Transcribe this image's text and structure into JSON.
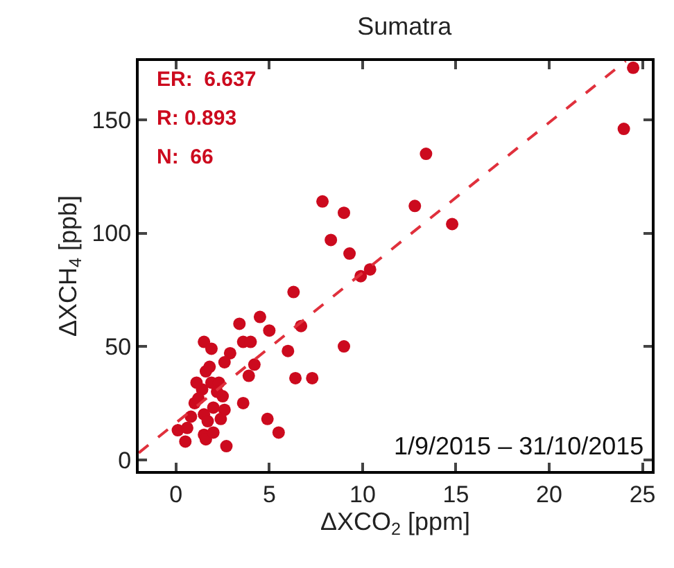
{
  "chart_data": {
    "type": "scatter",
    "title": "Sumatra",
    "xlabel": "ΔXCO$_{2}$ [ppm]",
    "ylabel": "ΔXCH$_{4}$ [ppb]",
    "xlim": [
      -2,
      25.5
    ],
    "ylim": [
      -5,
      176
    ],
    "xticks": [
      0,
      5,
      10,
      15,
      20,
      25
    ],
    "yticks": [
      0,
      50,
      100,
      150
    ],
    "marker": "circle",
    "annotations": [
      "ER:  6.637",
      "R: 0.893",
      "N:  66",
      "1/9/2015 – 31/10/2015"
    ],
    "series": [
      {
        "color": "#cc0a1e",
        "x": [
          7.85,
          9.0,
          8.3,
          9.3,
          9.9,
          10.4,
          6.3,
          3.4,
          4.5,
          5.0,
          6.7,
          6.0,
          9.0,
          1.5,
          1.9,
          3.6,
          4.0,
          2.9,
          2.6,
          4.2,
          3.9,
          6.4,
          7.3,
          1.6,
          1.9,
          1.4,
          2.5,
          1.0,
          2.0,
          2.6,
          3.6,
          1.5,
          1.7,
          4.9,
          5.5,
          0.1,
          0.6,
          0.5,
          1.5,
          1.6,
          2.7,
          0.8,
          1.1,
          2.3,
          13.4,
          12.8,
          14.8,
          24.0,
          24.5,
          1.8,
          2.2,
          1.2,
          2.0,
          2.4
        ],
        "values": [
          114,
          109,
          97,
          91,
          81,
          84,
          74,
          60,
          63,
          57,
          59,
          48,
          50,
          52,
          49,
          52,
          52,
          47,
          43,
          42,
          37,
          36,
          36,
          39,
          34,
          31,
          28,
          25,
          23,
          22,
          25,
          20,
          17,
          18,
          12,
          13,
          14,
          8,
          11,
          9,
          6,
          19,
          34,
          34,
          135,
          112,
          104,
          146,
          173,
          41,
          30,
          27,
          12,
          18
        ]
      },
      {
        "type": "line",
        "color": "#e0303c",
        "line_style": "dashed",
        "marker": "none",
        "x": [
          -2,
          24.1
        ],
        "values": [
          3,
          176
        ]
      }
    ]
  }
}
